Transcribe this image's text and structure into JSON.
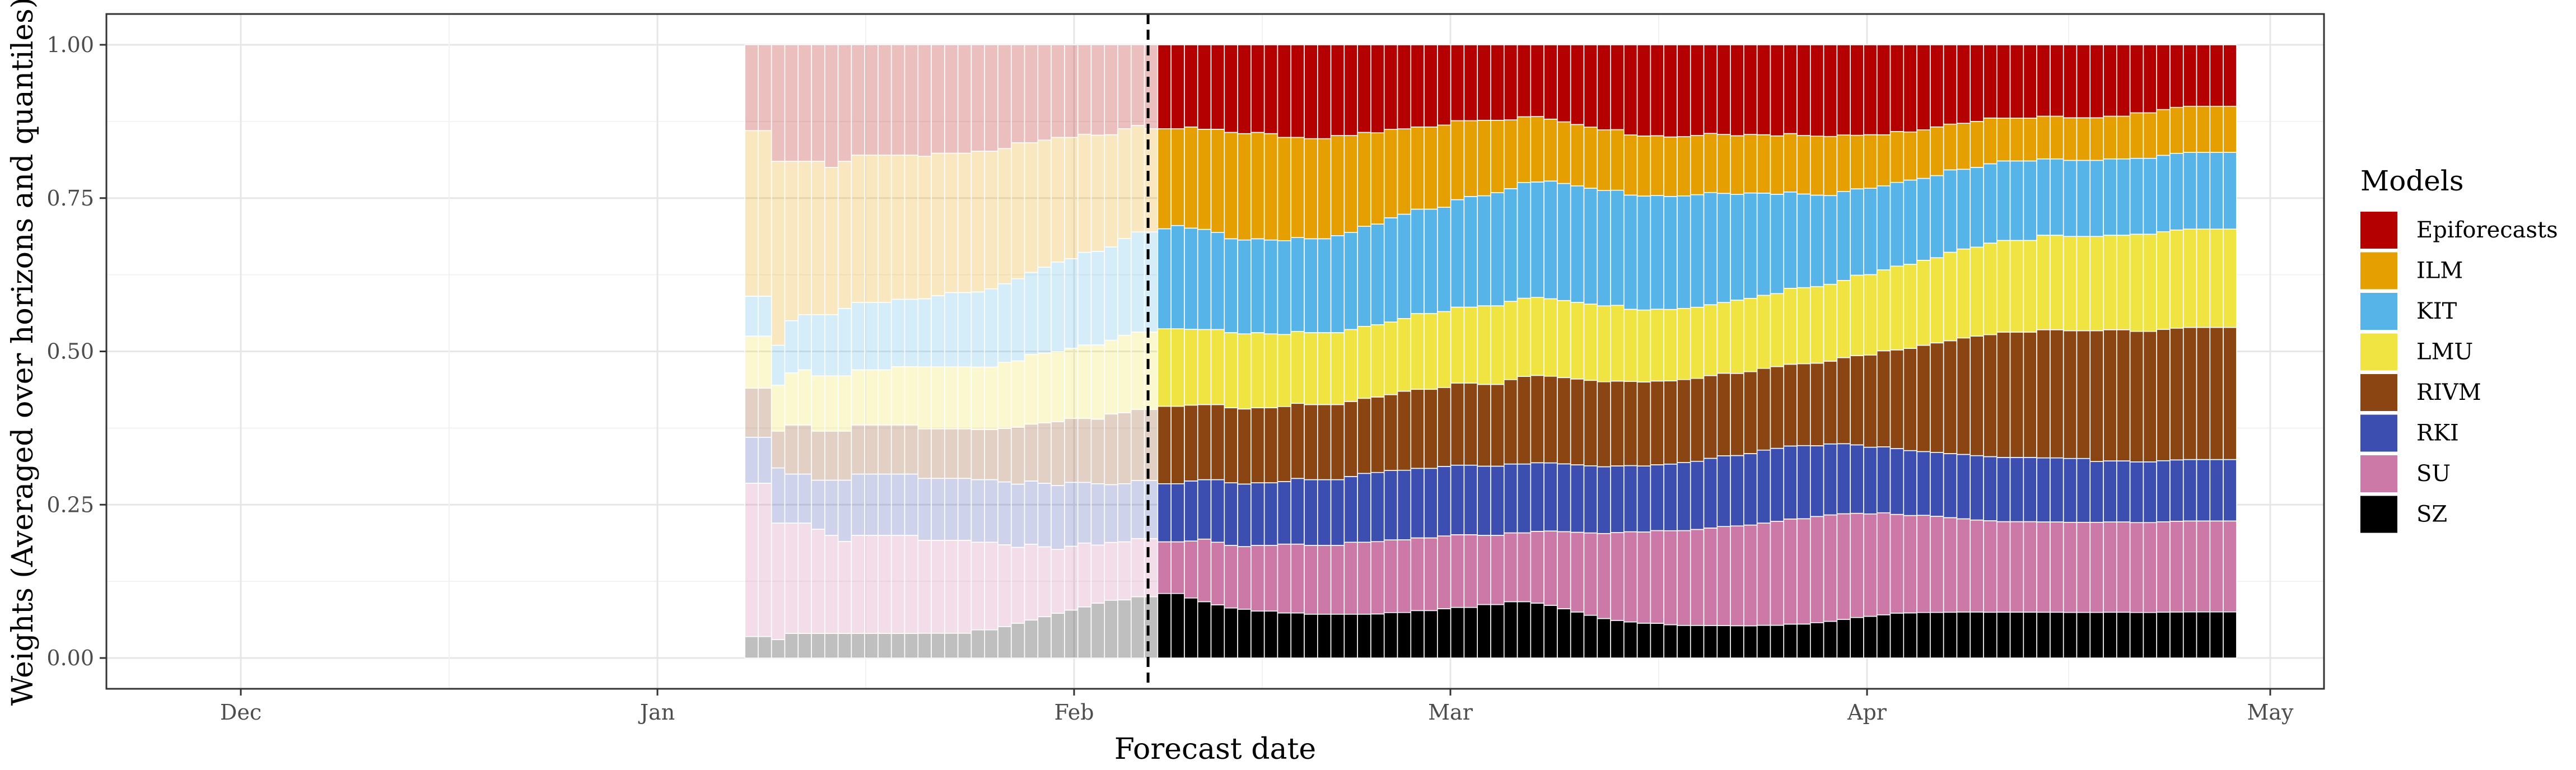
{
  "chart_data": {
    "type": "bar",
    "stacked": true,
    "xlabel": "Forecast date",
    "ylabel": "Weights (Averaged over horizons and quantiles)",
    "yticks": [
      "0.00",
      "0.25",
      "0.50",
      "0.75",
      "1.00"
    ],
    "ylim": [
      0,
      1
    ],
    "xlim": [
      "2020-11-21",
      "2021-05-05"
    ],
    "xticks": [
      {
        "date": "2020-12-01",
        "label": "Dec"
      },
      {
        "date": "2021-01-01",
        "label": "Jan"
      },
      {
        "date": "2021-02-01",
        "label": "Feb"
      },
      {
        "date": "2021-03-01",
        "label": "Mar"
      },
      {
        "date": "2021-04-01",
        "label": "Apr"
      },
      {
        "date": "2021-05-01",
        "label": "May"
      }
    ],
    "x_start": "2021-01-08",
    "x_end": "2021-04-28",
    "vline": "2021-02-07",
    "legend_title": "Models",
    "legend_position": "right",
    "grid": true,
    "series": [
      {
        "name": "SZ",
        "color": "#000000",
        "values": [
          0.035,
          0.035,
          0.03,
          0.04,
          0.04,
          0.04,
          0.04,
          0.04,
          0.04,
          0.04,
          0.04,
          0.04,
          0.04,
          0.04,
          0.04,
          0.04,
          0.04,
          0.045,
          0.045,
          0.05,
          0.055,
          0.06,
          0.065,
          0.07,
          0.075,
          0.08,
          0.085,
          0.09,
          0.09,
          0.095,
          0.095,
          0.1,
          0.1,
          0.095,
          0.09,
          0.085,
          0.08,
          0.078,
          0.075,
          0.075,
          0.072,
          0.072,
          0.07,
          0.07,
          0.07,
          0.07,
          0.07,
          0.07,
          0.072,
          0.072,
          0.075,
          0.075,
          0.078,
          0.08,
          0.08,
          0.085,
          0.085,
          0.09,
          0.09,
          0.088,
          0.085,
          0.08,
          0.075,
          0.07,
          0.065,
          0.062,
          0.06,
          0.058,
          0.058,
          0.056,
          0.055,
          0.055,
          0.055,
          0.055,
          0.055,
          0.055,
          0.056,
          0.056,
          0.058,
          0.058,
          0.06,
          0.062,
          0.065,
          0.068,
          0.07,
          0.072,
          0.075,
          0.075,
          0.075,
          0.075,
          0.075,
          0.075,
          0.075,
          0.075,
          0.075,
          0.075,
          0.075,
          0.075,
          0.075,
          0.075,
          0.075,
          0.075,
          0.075,
          0.075,
          0.075,
          0.075,
          0.075,
          0.075,
          0.075,
          0.075,
          0.075,
          0.075
        ]
      },
      {
        "name": "SU",
        "color": "#CC79A7",
        "values": [
          0.25,
          0.25,
          0.19,
          0.18,
          0.18,
          0.17,
          0.16,
          0.15,
          0.16,
          0.16,
          0.16,
          0.16,
          0.16,
          0.15,
          0.15,
          0.15,
          0.15,
          0.14,
          0.14,
          0.13,
          0.12,
          0.12,
          0.11,
          0.1,
          0.1,
          0.1,
          0.09,
          0.09,
          0.09,
          0.09,
          0.09,
          0.08,
          0.08,
          0.09,
          0.1,
          0.1,
          0.1,
          0.1,
          0.105,
          0.105,
          0.11,
          0.11,
          0.11,
          0.11,
          0.11,
          0.115,
          0.115,
          0.115,
          0.115,
          0.115,
          0.115,
          0.115,
          0.115,
          0.115,
          0.115,
          0.11,
          0.11,
          0.11,
          0.11,
          0.115,
          0.12,
          0.125,
          0.13,
          0.135,
          0.14,
          0.145,
          0.15,
          0.152,
          0.155,
          0.158,
          0.16,
          0.162,
          0.165,
          0.168,
          0.17,
          0.172,
          0.175,
          0.178,
          0.18,
          0.18,
          0.18,
          0.18,
          0.178,
          0.175,
          0.172,
          0.17,
          0.165,
          0.162,
          0.16,
          0.158,
          0.155,
          0.152,
          0.15,
          0.15,
          0.148,
          0.148,
          0.148,
          0.148,
          0.148,
          0.148,
          0.148,
          0.148,
          0.148,
          0.148,
          0.148,
          0.148,
          0.148,
          0.148,
          0.148,
          0.148,
          0.148,
          0.148
        ]
      },
      {
        "name": "RKI",
        "color": "#3C4EB0",
        "values": [
          0.075,
          0.075,
          0.09,
          0.08,
          0.08,
          0.08,
          0.09,
          0.1,
          0.1,
          0.1,
          0.1,
          0.1,
          0.1,
          0.1,
          0.1,
          0.1,
          0.1,
          0.1,
          0.1,
          0.1,
          0.1,
          0.1,
          0.1,
          0.1,
          0.1,
          0.095,
          0.095,
          0.09,
          0.09,
          0.09,
          0.09,
          0.09,
          0.09,
          0.095,
          0.095,
          0.1,
          0.1,
          0.1,
          0.1,
          0.1,
          0.1,
          0.105,
          0.105,
          0.105,
          0.105,
          0.105,
          0.11,
          0.11,
          0.11,
          0.11,
          0.11,
          0.11,
          0.11,
          0.11,
          0.11,
          0.11,
          0.11,
          0.11,
          0.11,
          0.11,
          0.11,
          0.11,
          0.11,
          0.11,
          0.11,
          0.11,
          0.11,
          0.11,
          0.11,
          0.112,
          0.115,
          0.115,
          0.118,
          0.12,
          0.12,
          0.122,
          0.125,
          0.125,
          0.125,
          0.125,
          0.12,
          0.12,
          0.118,
          0.115,
          0.112,
          0.11,
          0.11,
          0.108,
          0.105,
          0.105,
          0.105,
          0.105,
          0.105,
          0.105,
          0.105,
          0.105,
          0.105,
          0.105,
          0.105,
          0.105,
          0.105,
          0.1,
          0.1,
          0.1,
          0.1,
          0.1,
          0.1,
          0.1,
          0.1,
          0.1,
          0.1,
          0.1
        ]
      },
      {
        "name": "RIVM",
        "color": "#8B4513",
        "values": [
          0.08,
          0.08,
          0.06,
          0.08,
          0.08,
          0.08,
          0.08,
          0.08,
          0.08,
          0.08,
          0.08,
          0.08,
          0.08,
          0.08,
          0.08,
          0.08,
          0.08,
          0.08,
          0.08,
          0.085,
          0.09,
          0.09,
          0.095,
          0.1,
          0.1,
          0.1,
          0.1,
          0.11,
          0.11,
          0.11,
          0.11,
          0.12,
          0.12,
          0.12,
          0.12,
          0.12,
          0.12,
          0.12,
          0.12,
          0.12,
          0.12,
          0.12,
          0.12,
          0.12,
          0.12,
          0.12,
          0.12,
          0.12,
          0.12,
          0.125,
          0.125,
          0.125,
          0.125,
          0.13,
          0.13,
          0.13,
          0.13,
          0.135,
          0.14,
          0.14,
          0.14,
          0.14,
          0.14,
          0.14,
          0.14,
          0.14,
          0.14,
          0.14,
          0.14,
          0.14,
          0.14,
          0.14,
          0.14,
          0.14,
          0.14,
          0.14,
          0.14,
          0.14,
          0.14,
          0.14,
          0.14,
          0.14,
          0.145,
          0.15,
          0.155,
          0.16,
          0.165,
          0.17,
          0.175,
          0.18,
          0.185,
          0.19,
          0.195,
          0.2,
          0.205,
          0.205,
          0.205,
          0.21,
          0.21,
          0.21,
          0.21,
          0.215,
          0.215,
          0.215,
          0.215,
          0.215,
          0.215,
          0.215,
          0.215,
          0.215,
          0.215,
          0.215
        ]
      },
      {
        "name": "LMU",
        "color": "#F0E442",
        "values": [
          0.085,
          0.085,
          0.075,
          0.085,
          0.09,
          0.09,
          0.09,
          0.09,
          0.09,
          0.09,
          0.09,
          0.095,
          0.095,
          0.1,
          0.1,
          0.1,
          0.1,
          0.1,
          0.1,
          0.105,
          0.105,
          0.11,
          0.11,
          0.11,
          0.11,
          0.115,
          0.115,
          0.115,
          0.12,
          0.12,
          0.12,
          0.12,
          0.12,
          0.12,
          0.12,
          0.12,
          0.12,
          0.12,
          0.12,
          0.118,
          0.115,
          0.115,
          0.115,
          0.115,
          0.115,
          0.115,
          0.115,
          0.115,
          0.115,
          0.115,
          0.12,
          0.12,
          0.12,
          0.12,
          0.12,
          0.125,
          0.125,
          0.125,
          0.125,
          0.125,
          0.125,
          0.125,
          0.125,
          0.125,
          0.125,
          0.125,
          0.12,
          0.12,
          0.12,
          0.12,
          0.12,
          0.12,
          0.12,
          0.12,
          0.125,
          0.125,
          0.125,
          0.125,
          0.13,
          0.13,
          0.13,
          0.13,
          0.13,
          0.135,
          0.135,
          0.135,
          0.14,
          0.14,
          0.14,
          0.14,
          0.145,
          0.145,
          0.145,
          0.15,
          0.15,
          0.15,
          0.15,
          0.155,
          0.155,
          0.155,
          0.155,
          0.155,
          0.155,
          0.155,
          0.16,
          0.16,
          0.16,
          0.16,
          0.16,
          0.16,
          0.16,
          0.16
        ]
      },
      {
        "name": "KIT",
        "color": "#56B4E9",
        "values": [
          0.065,
          0.065,
          0.065,
          0.085,
          0.09,
          0.1,
          0.1,
          0.11,
          0.11,
          0.11,
          0.11,
          0.11,
          0.11,
          0.11,
          0.115,
          0.12,
          0.12,
          0.12,
          0.125,
          0.125,
          0.13,
          0.13,
          0.135,
          0.14,
          0.14,
          0.145,
          0.145,
          0.145,
          0.15,
          0.155,
          0.155,
          0.155,
          0.16,
          0.16,
          0.16,
          0.155,
          0.15,
          0.15,
          0.15,
          0.15,
          0.15,
          0.15,
          0.15,
          0.15,
          0.155,
          0.155,
          0.16,
          0.16,
          0.165,
          0.165,
          0.165,
          0.165,
          0.165,
          0.17,
          0.175,
          0.175,
          0.18,
          0.18,
          0.185,
          0.185,
          0.19,
          0.19,
          0.19,
          0.19,
          0.19,
          0.19,
          0.19,
          0.19,
          0.19,
          0.19,
          0.19,
          0.19,
          0.19,
          0.185,
          0.18,
          0.18,
          0.175,
          0.17,
          0.165,
          0.16,
          0.155,
          0.15,
          0.15,
          0.145,
          0.145,
          0.14,
          0.14,
          0.14,
          0.135,
          0.135,
          0.135,
          0.13,
          0.13,
          0.13,
          0.13,
          0.13,
          0.13,
          0.125,
          0.125,
          0.125,
          0.125,
          0.125,
          0.125,
          0.125,
          0.125,
          0.125,
          0.125,
          0.125,
          0.125,
          0.125,
          0.125,
          0.125
        ]
      },
      {
        "name": "ILM",
        "color": "#E69F00",
        "values": [
          0.27,
          0.27,
          0.3,
          0.26,
          0.25,
          0.25,
          0.24,
          0.24,
          0.24,
          0.24,
          0.24,
          0.235,
          0.235,
          0.23,
          0.23,
          0.225,
          0.225,
          0.225,
          0.22,
          0.215,
          0.215,
          0.205,
          0.2,
          0.195,
          0.19,
          0.185,
          0.18,
          0.175,
          0.17,
          0.165,
          0.16,
          0.155,
          0.15,
          0.16,
          0.16,
          0.165,
          0.17,
          0.17,
          0.17,
          0.17,
          0.165,
          0.16,
          0.16,
          0.16,
          0.16,
          0.155,
          0.15,
          0.145,
          0.14,
          0.135,
          0.13,
          0.13,
          0.13,
          0.125,
          0.12,
          0.12,
          0.115,
          0.11,
          0.105,
          0.105,
          0.1,
          0.1,
          0.1,
          0.1,
          0.1,
          0.1,
          0.1,
          0.1,
          0.1,
          0.1,
          0.1,
          0.1,
          0.1,
          0.1,
          0.1,
          0.1,
          0.1,
          0.1,
          0.1,
          0.1,
          0.1,
          0.1,
          0.095,
          0.09,
          0.09,
          0.085,
          0.085,
          0.08,
          0.08,
          0.08,
          0.075,
          0.075,
          0.075,
          0.075,
          0.07,
          0.07,
          0.07,
          0.07,
          0.07,
          0.07,
          0.07,
          0.07,
          0.07,
          0.07,
          0.075,
          0.075,
          0.075,
          0.075,
          0.075,
          0.075,
          0.075,
          0.075
        ]
      },
      {
        "name": "Epiforecasts",
        "color": "#B50000",
        "values": [
          0.14,
          0.14,
          0.19,
          0.19,
          0.19,
          0.19,
          0.2,
          0.19,
          0.18,
          0.18,
          0.18,
          0.18,
          0.18,
          0.18,
          0.175,
          0.175,
          0.175,
          0.17,
          0.17,
          0.165,
          0.155,
          0.155,
          0.15,
          0.145,
          0.145,
          0.14,
          0.14,
          0.14,
          0.13,
          0.125,
          0.13,
          0.13,
          0.13,
          0.13,
          0.135,
          0.135,
          0.14,
          0.142,
          0.14,
          0.142,
          0.148,
          0.148,
          0.15,
          0.15,
          0.145,
          0.145,
          0.14,
          0.14,
          0.134,
          0.133,
          0.13,
          0.13,
          0.127,
          0.12,
          0.12,
          0.12,
          0.12,
          0.12,
          0.115,
          0.115,
          0.12,
          0.125,
          0.13,
          0.135,
          0.14,
          0.14,
          0.15,
          0.152,
          0.152,
          0.155,
          0.155,
          0.153,
          0.15,
          0.152,
          0.155,
          0.153,
          0.154,
          0.156,
          0.152,
          0.155,
          0.155,
          0.155,
          0.152,
          0.152,
          0.151,
          0.15,
          0.145,
          0.145,
          0.14,
          0.135,
          0.13,
          0.128,
          0.125,
          0.12,
          0.12,
          0.12,
          0.12,
          0.117,
          0.117,
          0.12,
          0.12,
          0.12,
          0.117,
          0.117,
          0.112,
          0.112,
          0.106,
          0.102,
          0.1,
          0.1,
          0.1,
          0.1
        ]
      }
    ]
  }
}
